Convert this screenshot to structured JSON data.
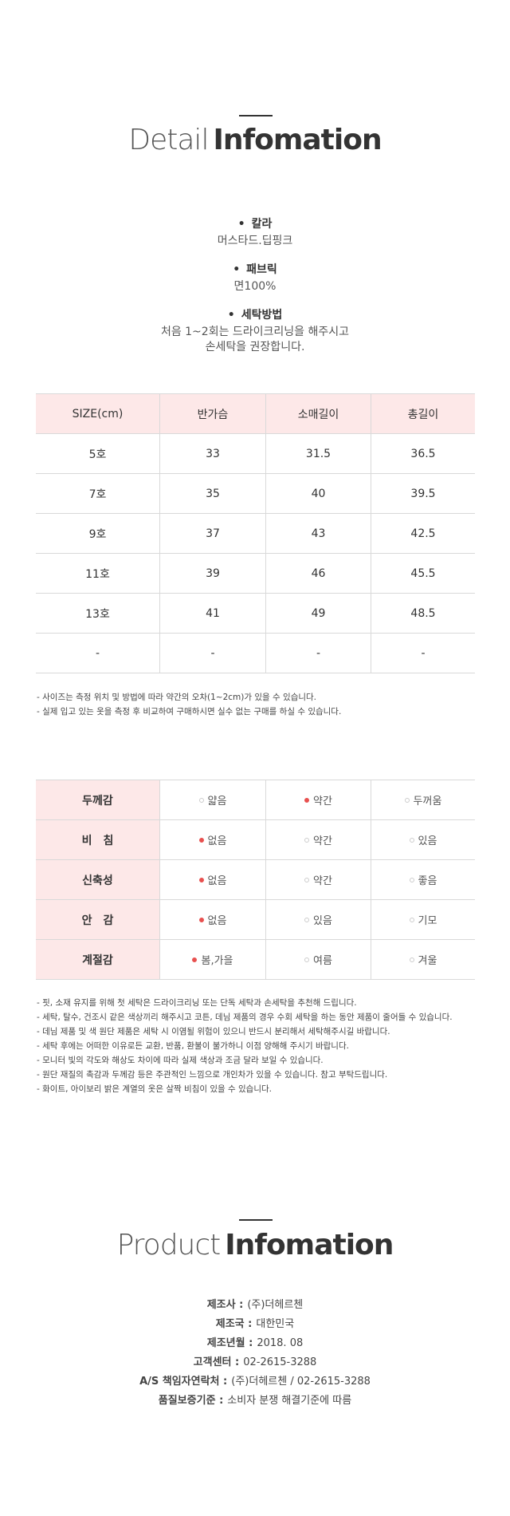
{
  "detail_title": {
    "light": "Detail",
    "bold": "Infomation"
  },
  "info": [
    {
      "label": "칼라",
      "lines": [
        "머스타드.딥핑크"
      ]
    },
    {
      "label": "패브릭",
      "lines": [
        "면100%"
      ]
    },
    {
      "label": "세탁방법",
      "lines": [
        "처음 1~2회는 드라이크리닝을 해주시고",
        "손세탁을 권장합니다."
      ]
    }
  ],
  "size_table": {
    "header": [
      "SIZE(cm)",
      "반가슴",
      "소매길이",
      "총길이"
    ],
    "rows": [
      [
        "5호",
        "33",
        "31.5",
        "36.5"
      ],
      [
        "7호",
        "35",
        "40",
        "39.5"
      ],
      [
        "9호",
        "37",
        "43",
        "42.5"
      ],
      [
        "11호",
        "39",
        "46",
        "45.5"
      ],
      [
        "13호",
        "41",
        "49",
        "48.5"
      ],
      [
        "-",
        "-",
        "-",
        "-"
      ]
    ]
  },
  "size_notes": [
    "- 사이즈는 측정 위치 및 방법에 따라 약간의 오차(1~2cm)가 있을 수 있습니다.",
    "- 실제 입고 있는 옷을 측정 후 비교하여 구매하시면 실수 없는 구매를 하실 수 있습니다."
  ],
  "feature_table": [
    {
      "label": "두께감",
      "options": [
        "얇음",
        "약간",
        "두꺼움"
      ],
      "selected": 1
    },
    {
      "label": "비　침",
      "options": [
        "없음",
        "약간",
        "있음"
      ],
      "selected": 0
    },
    {
      "label": "신축성",
      "options": [
        "없음",
        "약간",
        "좋음"
      ],
      "selected": 0
    },
    {
      "label": "안　감",
      "options": [
        "없음",
        "있음",
        "기모"
      ],
      "selected": 0
    },
    {
      "label": "계절감",
      "options": [
        "봄,가을",
        "여름",
        "겨울"
      ],
      "selected": 0
    }
  ],
  "care_notes": [
    "- 핏, 소재 유지를 위해 첫 세탁은 드라이크리닝 또는 단독 세탁과 손세탁을 추천해 드립니다.",
    "- 세탁, 탈수, 건조시 같은 색상끼리 해주시고 코튼, 데님 제품의 경우 수회 세탁을 하는 동안 제품이 줄어들 수 있습니다.",
    "- 데님 제품 및 색 원단 제품은 세탁 시 이염될 위험이 있으니 반드시 분리해서 세탁해주시길 바랍니다.",
    "- 세탁 후에는 어떠한 이유로든 교환, 반품, 환불이 불가하니 이점 양해해 주시기 바랍니다.",
    "- 모니터 빛의 각도와 해상도 차이에 따라 실제 색상과 조금 달라 보일 수 있습니다.",
    "- 원단 재질의 촉감과 두께감 등은 주관적인 느낌으로 개인차가 있을 수 있습니다. 참고 부탁드립니다.",
    "- 화이트, 아이보리 밝은 계열의 옷은 살짝 비침이 있을 수 있습니다."
  ],
  "product_title": {
    "light": "Product",
    "bold": "Infomation"
  },
  "product_info": [
    {
      "label": "제조사 :",
      "value": "(주)더헤르첸"
    },
    {
      "label": "제조국 :",
      "value": "대한민국"
    },
    {
      "label": "제조년월 :",
      "value": "2018. 08"
    },
    {
      "label": "고객센터 :",
      "value": "02-2615-3288"
    },
    {
      "label": "A/S 책임자연락처 :",
      "value": "(주)더헤르첸 / 02-2615-3288"
    },
    {
      "label": "품질보증기준 :",
      "value": "소비자 분쟁 해결기준에 따름"
    }
  ]
}
